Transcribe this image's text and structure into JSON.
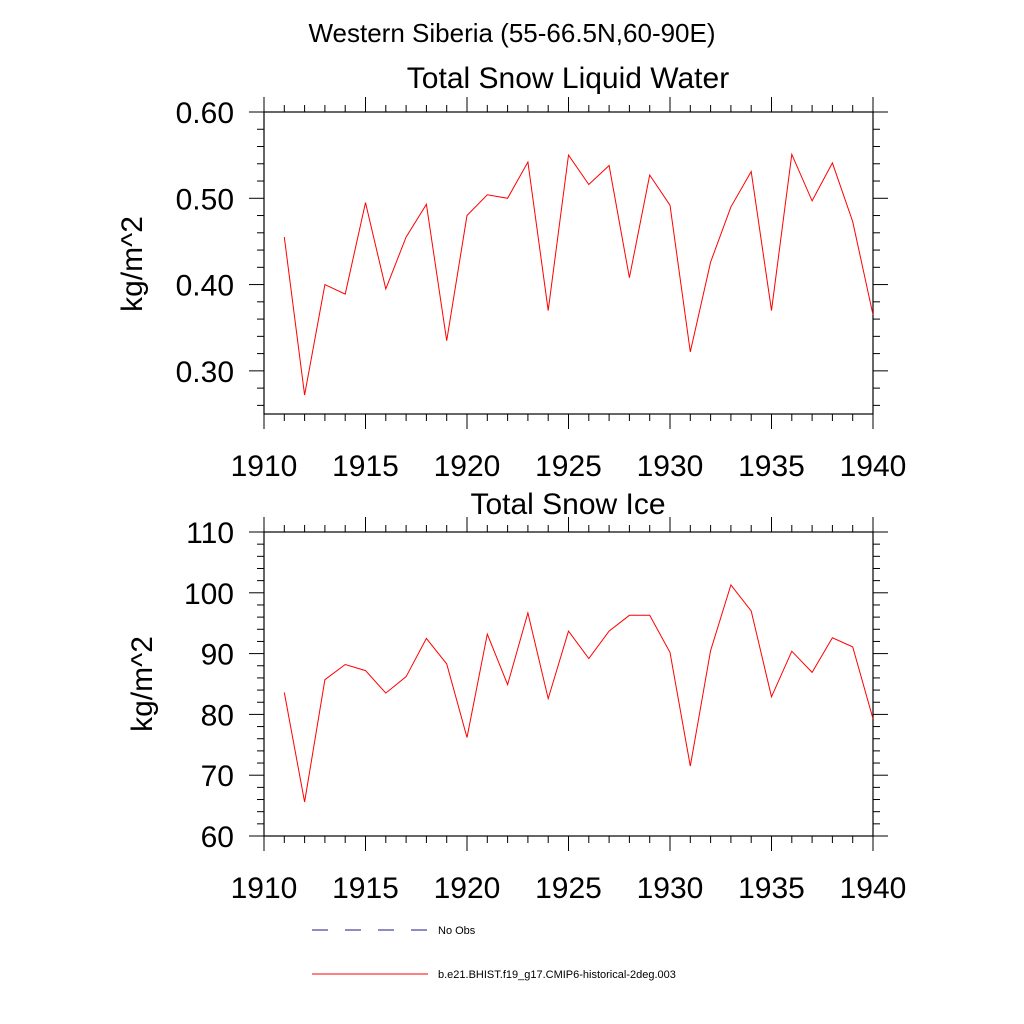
{
  "figure": {
    "title": "Western Siberia (55-66.5N,60-90E)"
  },
  "chart_data": [
    {
      "type": "line",
      "title": "Total Snow Liquid Water",
      "xlabel": "",
      "ylabel": "kg/m^2",
      "xlim": [
        1910,
        1940
      ],
      "ylim": [
        0.25,
        0.6
      ],
      "x_ticks": [
        "1910",
        "1915",
        "1920",
        "1925",
        "1930",
        "1935",
        "1940"
      ],
      "y_ticks": [
        "0.30",
        "0.40",
        "0.50",
        "0.60"
      ],
      "grid": false,
      "series": [
        {
          "name": "b.e21.BHIST.f19_g17.CMIP6-historical-2deg.003",
          "color": "#ff0000",
          "x": [
            1911,
            1912,
            1913,
            1914,
            1915,
            1916,
            1917,
            1918,
            1919,
            1920,
            1921,
            1922,
            1923,
            1924,
            1925,
            1926,
            1927,
            1928,
            1929,
            1930,
            1931,
            1932,
            1933,
            1934,
            1935,
            1936,
            1937,
            1938,
            1939,
            1940
          ],
          "values": [
            0.455,
            0.272,
            0.4,
            0.389,
            0.495,
            0.395,
            0.455,
            0.493,
            0.335,
            0.48,
            0.504,
            0.5,
            0.542,
            0.37,
            0.55,
            0.516,
            0.538,
            0.408,
            0.527,
            0.492,
            0.322,
            0.426,
            0.49,
            0.531,
            0.37,
            0.551,
            0.497,
            0.541,
            0.473,
            0.365
          ]
        }
      ]
    },
    {
      "type": "line",
      "title": "Total Snow Ice",
      "xlabel": "",
      "ylabel": "kg/m^2",
      "xlim": [
        1910,
        1940
      ],
      "ylim": [
        60,
        110
      ],
      "x_ticks": [
        "1910",
        "1915",
        "1920",
        "1925",
        "1930",
        "1935",
        "1940"
      ],
      "y_ticks": [
        "60",
        "70",
        "80",
        "90",
        "100",
        "110"
      ],
      "grid": false,
      "series": [
        {
          "name": "b.e21.BHIST.f19_g17.CMIP6-historical-2deg.003",
          "color": "#ff0000",
          "x": [
            1911,
            1912,
            1913,
            1914,
            1915,
            1916,
            1917,
            1918,
            1919,
            1920,
            1921,
            1922,
            1923,
            1924,
            1925,
            1926,
            1927,
            1928,
            1929,
            1930,
            1931,
            1932,
            1933,
            1934,
            1935,
            1936,
            1937,
            1938,
            1939,
            1940
          ],
          "values": [
            83.6,
            65.6,
            85.7,
            88.2,
            87.2,
            83.5,
            86.2,
            92.5,
            88.3,
            76.2,
            93.2,
            84.9,
            96.7,
            82.6,
            93.7,
            89.2,
            93.7,
            96.3,
            96.3,
            90.2,
            71.5,
            90.5,
            101.3,
            97.0,
            82.9,
            90.4,
            86.9,
            92.6,
            91.1,
            79.3
          ]
        }
      ]
    }
  ],
  "legend": {
    "placement": "bottom",
    "entries": [
      {
        "label": "No Obs",
        "style": "dashed",
        "color": "#1a1a80"
      },
      {
        "label": "b.e21.BHIST.f19_g17.CMIP6-historical-2deg.003",
        "style": "solid",
        "color": "#ff0000"
      }
    ]
  }
}
